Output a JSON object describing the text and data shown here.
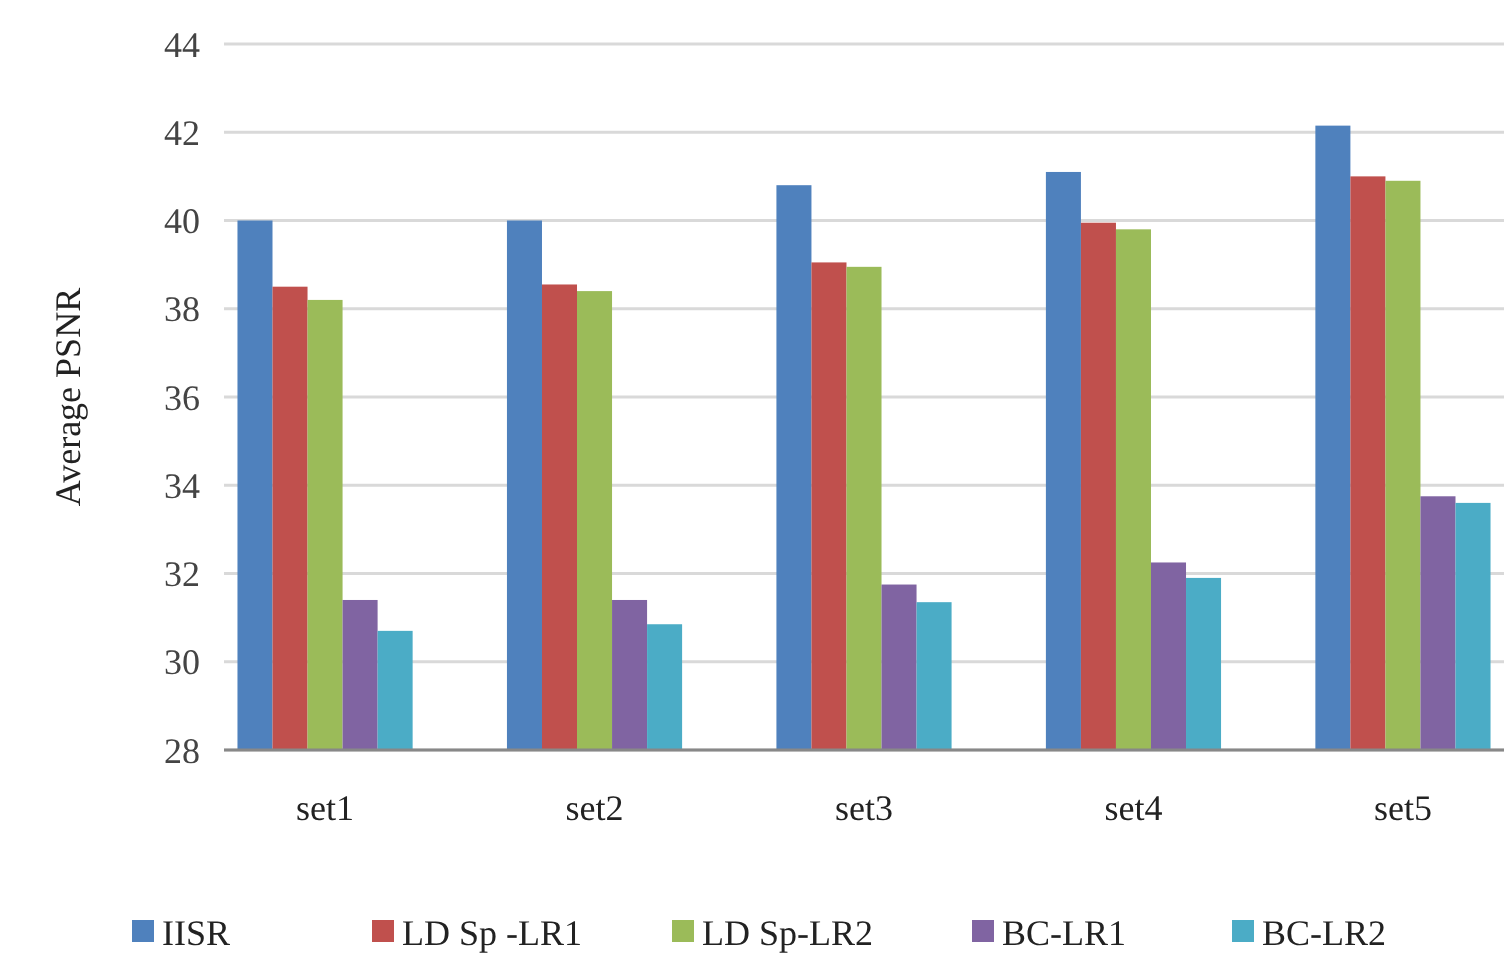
{
  "chart_data": {
    "type": "bar",
    "ylabel": "Average PSNR",
    "categories": [
      "set1",
      "set2",
      "set3",
      "set4",
      "set5"
    ],
    "series": [
      {
        "name": "IISR",
        "color": "#4f81bd",
        "values": [
          40.0,
          40.0,
          40.8,
          41.1,
          42.15
        ]
      },
      {
        "name": "LD Sp -LR1",
        "color": "#c0504d",
        "values": [
          38.5,
          38.55,
          39.05,
          39.95,
          41.0
        ]
      },
      {
        "name": "LD Sp-LR2",
        "color": "#9bbb59",
        "values": [
          38.2,
          38.4,
          38.95,
          39.8,
          40.9
        ]
      },
      {
        "name": "BC-LR1",
        "color": "#8064a2",
        "values": [
          31.4,
          31.4,
          31.75,
          32.25,
          33.75
        ]
      },
      {
        "name": "BC-LR2",
        "color": "#4bacc6",
        "values": [
          30.7,
          30.85,
          31.35,
          31.9,
          33.6
        ]
      }
    ],
    "ylim": [
      28,
      44
    ],
    "yticks": [
      28,
      30,
      32,
      34,
      36,
      38,
      40,
      42,
      44
    ],
    "grid": "y",
    "legend": "bottom"
  }
}
